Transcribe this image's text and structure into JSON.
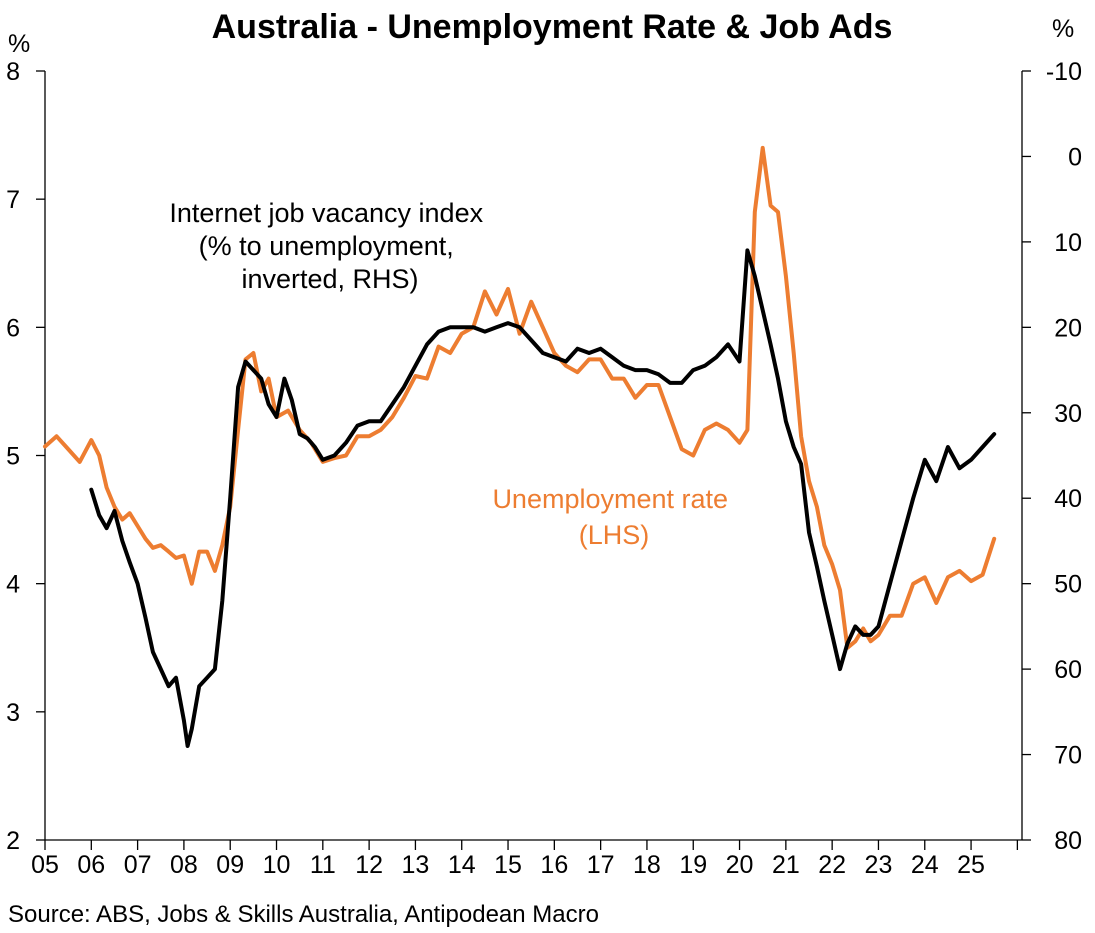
{
  "chart_data": {
    "type": "line",
    "title": "Australia - Unemployment Rate & Job Ads",
    "left_axis": {
      "unit": "%",
      "ylim": [
        2,
        8
      ],
      "ticks": [
        "2",
        "3",
        "4",
        "5",
        "6",
        "7",
        "8"
      ]
    },
    "right_axis": {
      "unit": "%",
      "ylim": [
        80,
        -10
      ],
      "inverted": true,
      "ticks": [
        "-10",
        "0",
        "10",
        "20",
        "30",
        "40",
        "50",
        "60",
        "70",
        "80"
      ]
    },
    "x_range": [
      2005,
      2026.1
    ],
    "x_tick_labels": [
      "05",
      "06",
      "07",
      "08",
      "09",
      "10",
      "11",
      "12",
      "13",
      "14",
      "15",
      "16",
      "17",
      "18",
      "19",
      "20",
      "21",
      "22",
      "23",
      "24",
      "25"
    ],
    "grid": false,
    "legend": "none",
    "source": "Source: ABS, Jobs & Skills Australia, Antipodean Macro",
    "colors": {
      "unemployment": "#ed7d31",
      "job_ads": "#000000"
    },
    "series": [
      {
        "name": "Unemployment rate (LHS)",
        "annotation_lines": [
          "Unemployment rate",
          "(LHS)"
        ],
        "axis": "left",
        "x": [
          2005.0,
          2005.25,
          2005.5,
          2005.75,
          2006.0,
          2006.17,
          2006.33,
          2006.5,
          2006.67,
          2006.83,
          2007.0,
          2007.17,
          2007.33,
          2007.5,
          2007.67,
          2007.83,
          2008.0,
          2008.17,
          2008.33,
          2008.5,
          2008.67,
          2008.83,
          2009.0,
          2009.17,
          2009.33,
          2009.5,
          2009.67,
          2009.83,
          2010.0,
          2010.25,
          2010.5,
          2010.75,
          2011.0,
          2011.25,
          2011.5,
          2011.75,
          2012.0,
          2012.25,
          2012.5,
          2012.75,
          2013.0,
          2013.25,
          2013.5,
          2013.75,
          2014.0,
          2014.25,
          2014.5,
          2014.75,
          2015.0,
          2015.25,
          2015.5,
          2015.75,
          2016.0,
          2016.25,
          2016.5,
          2016.75,
          2017.0,
          2017.25,
          2017.5,
          2017.75,
          2018.0,
          2018.25,
          2018.5,
          2018.75,
          2019.0,
          2019.25,
          2019.5,
          2019.75,
          2020.0,
          2020.17,
          2020.33,
          2020.5,
          2020.67,
          2020.83,
          2021.0,
          2021.17,
          2021.33,
          2021.5,
          2021.67,
          2021.83,
          2022.0,
          2022.17,
          2022.33,
          2022.5,
          2022.67,
          2022.83,
          2023.0,
          2023.25,
          2023.5,
          2023.75,
          2024.0,
          2024.25,
          2024.5,
          2024.75,
          2025.0,
          2025.25,
          2025.5
        ],
        "values": [
          5.07,
          5.15,
          5.05,
          4.95,
          5.12,
          5.0,
          4.75,
          4.6,
          4.5,
          4.55,
          4.45,
          4.35,
          4.28,
          4.3,
          4.25,
          4.2,
          4.22,
          4.0,
          4.25,
          4.25,
          4.1,
          4.3,
          4.6,
          5.2,
          5.75,
          5.8,
          5.5,
          5.6,
          5.3,
          5.35,
          5.2,
          5.1,
          4.95,
          4.98,
          5.0,
          5.15,
          5.15,
          5.2,
          5.3,
          5.45,
          5.62,
          5.6,
          5.85,
          5.8,
          5.95,
          6.0,
          6.28,
          6.1,
          6.3,
          5.95,
          6.2,
          6.0,
          5.8,
          5.7,
          5.65,
          5.75,
          5.75,
          5.6,
          5.6,
          5.45,
          5.55,
          5.55,
          5.3,
          5.05,
          5.0,
          5.2,
          5.25,
          5.2,
          5.1,
          5.2,
          6.9,
          7.4,
          6.95,
          6.9,
          6.4,
          5.8,
          5.15,
          4.8,
          4.6,
          4.3,
          4.15,
          3.95,
          3.5,
          3.55,
          3.65,
          3.55,
          3.6,
          3.75,
          3.75,
          4.0,
          4.05,
          3.85,
          4.05,
          4.1,
          4.02,
          4.07,
          4.35
        ]
      },
      {
        "name": "Internet job vacancy index (% to unemployment, inverted, RHS)",
        "annotation_lines": [
          "Internet job vacancy index",
          "(% to unemployment,",
          "inverted, RHS)"
        ],
        "axis": "right",
        "x": [
          2006.0,
          2006.17,
          2006.33,
          2006.5,
          2006.67,
          2006.83,
          2007.0,
          2007.17,
          2007.33,
          2007.5,
          2007.67,
          2007.83,
          2008.0,
          2008.08,
          2008.17,
          2008.33,
          2008.5,
          2008.67,
          2008.83,
          2009.0,
          2009.17,
          2009.33,
          2009.5,
          2009.67,
          2009.83,
          2010.0,
          2010.17,
          2010.33,
          2010.5,
          2010.67,
          2010.83,
          2011.0,
          2011.25,
          2011.5,
          2011.75,
          2012.0,
          2012.25,
          2012.5,
          2012.75,
          2013.0,
          2013.25,
          2013.5,
          2013.75,
          2014.0,
          2014.25,
          2014.5,
          2014.75,
          2015.0,
          2015.25,
          2015.5,
          2015.75,
          2016.0,
          2016.25,
          2016.5,
          2016.75,
          2017.0,
          2017.25,
          2017.5,
          2017.75,
          2018.0,
          2018.25,
          2018.5,
          2018.75,
          2019.0,
          2019.25,
          2019.5,
          2019.75,
          2020.0,
          2020.17,
          2020.33,
          2020.5,
          2020.67,
          2020.83,
          2021.0,
          2021.17,
          2021.33,
          2021.5,
          2021.67,
          2021.83,
          2022.0,
          2022.17,
          2022.33,
          2022.5,
          2022.67,
          2022.83,
          2023.0,
          2023.25,
          2023.5,
          2023.75,
          2024.0,
          2024.25,
          2024.5,
          2024.75,
          2025.0,
          2025.25,
          2025.5
        ],
        "values": [
          39.0,
          42.0,
          43.5,
          41.5,
          45.0,
          47.5,
          50.0,
          54.0,
          58.0,
          60.0,
          62.0,
          61.0,
          66.0,
          69.0,
          67.0,
          62.0,
          61.0,
          60.0,
          52.0,
          40.0,
          27.0,
          24.0,
          25.0,
          26.0,
          29.0,
          30.5,
          26.0,
          28.5,
          32.5,
          33.0,
          34.0,
          35.5,
          35.0,
          33.5,
          31.5,
          31.0,
          31.0,
          29.0,
          27.0,
          24.5,
          22.0,
          20.5,
          20.0,
          20.0,
          20.0,
          20.5,
          20.0,
          19.5,
          20.0,
          21.5,
          23.0,
          23.5,
          24.0,
          22.5,
          23.0,
          22.5,
          23.5,
          24.5,
          25.0,
          25.0,
          25.5,
          26.5,
          26.5,
          25.0,
          24.5,
          23.5,
          22.0,
          24.0,
          11.0,
          14.0,
          18.0,
          22.0,
          26.0,
          31.0,
          34.0,
          36.0,
          44.0,
          48.0,
          52.0,
          56.0,
          60.0,
          57.0,
          55.0,
          56.0,
          56.0,
          55.0,
          50.0,
          45.0,
          40.0,
          35.5,
          38.0,
          34.0,
          36.5,
          35.5,
          34.0,
          32.5
        ]
      }
    ]
  }
}
